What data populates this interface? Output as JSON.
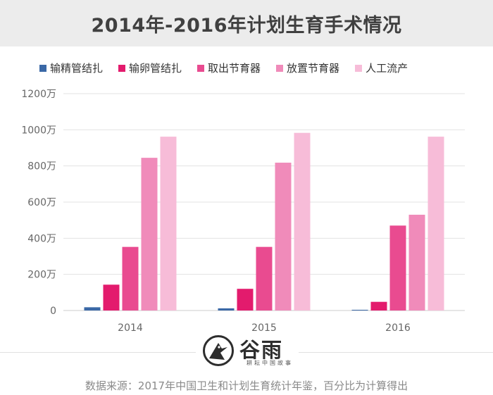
{
  "chart_data": {
    "type": "bar",
    "title": "2014年-2016年计划生育手术情况",
    "categories": [
      "2014",
      "2015",
      "2016"
    ],
    "series": [
      {
        "name": "输精管结扎",
        "color": "#3a68a6",
        "values": [
          18,
          12,
          4
        ]
      },
      {
        "name": "输卵管结扎",
        "color": "#e31b6d",
        "values": [
          143,
          120,
          48
        ]
      },
      {
        "name": "取出节育器",
        "color": "#e94b90",
        "values": [
          352,
          352,
          470
        ]
      },
      {
        "name": "放置节育器",
        "color": "#f08bba",
        "values": [
          845,
          818,
          530
        ]
      },
      {
        "name": "人工流产",
        "color": "#f7bcd8",
        "values": [
          962,
          983,
          962
        ]
      }
    ],
    "yticks": [
      "0",
      "200万",
      "400万",
      "600万",
      "800万",
      "1000万",
      "1200万"
    ],
    "ylim": [
      0,
      1200
    ],
    "grid": true,
    "legend_position": "top"
  },
  "logo": {
    "name": "谷雨",
    "tagline": "耕耘中国故事"
  },
  "source": "数据来源：2017年中国卫生和计划生育统计年鉴，百分比为计算得出"
}
